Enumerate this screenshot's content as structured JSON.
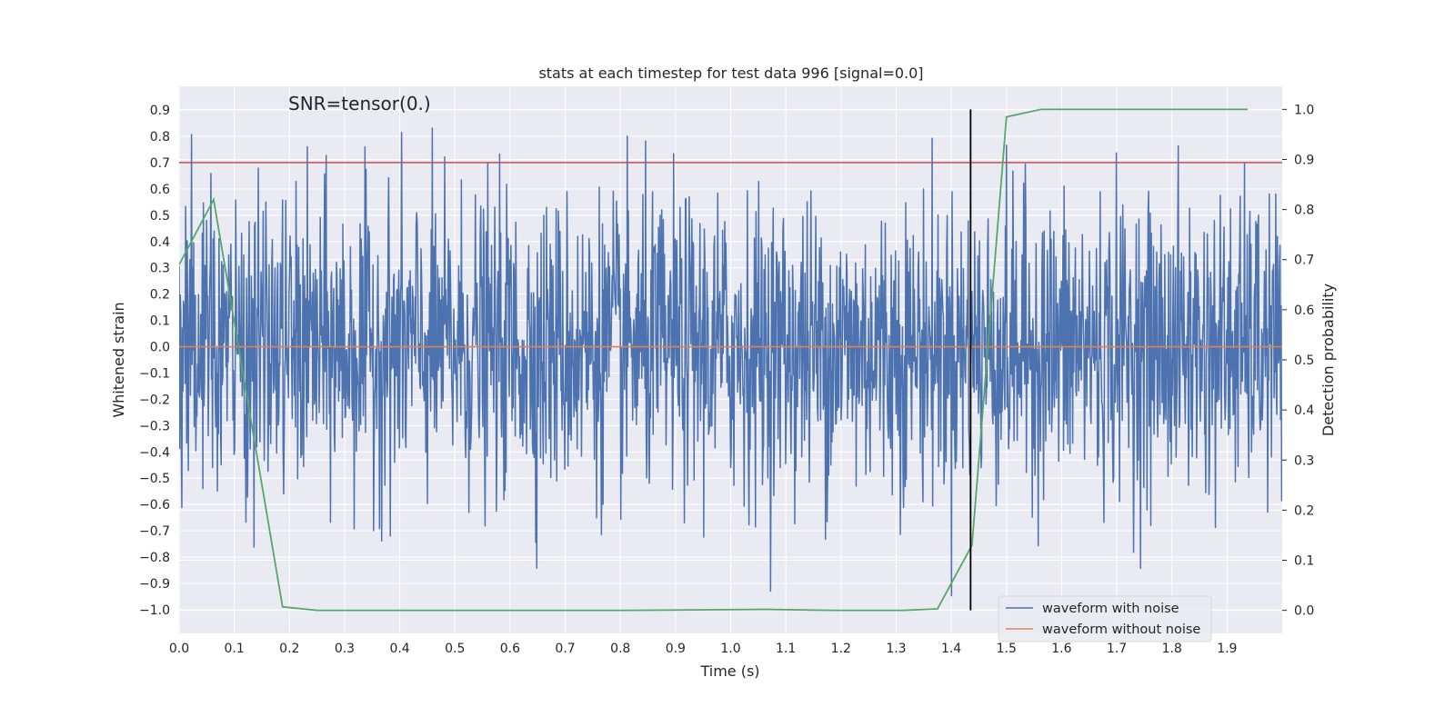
{
  "chart_data": {
    "type": "line",
    "title": "stats at each timestep for test data 996 [signal=0.0]",
    "xlabel": "Time (s)",
    "ylabel": "Whitened strain",
    "y2label": "Detection probability",
    "annotation": "SNR=tensor(0.)",
    "xlim": [
      0.0,
      2.0
    ],
    "ylim": [
      -1.09,
      0.99
    ],
    "y2lim": [
      -0.046,
      1.046
    ],
    "xticks": [
      "0.0",
      "0.1",
      "0.2",
      "0.3",
      "0.4",
      "0.5",
      "0.6",
      "0.7",
      "0.8",
      "0.9",
      "1.0",
      "1.1",
      "1.2",
      "1.3",
      "1.4",
      "1.5",
      "1.6",
      "1.7",
      "1.8",
      "1.9"
    ],
    "yticks": [
      "0.9",
      "0.8",
      "0.7",
      "0.6",
      "0.5",
      "0.4",
      "0.3",
      "0.2",
      "0.1",
      "0.0",
      "−0.1",
      "−0.2",
      "−0.3",
      "−0.4",
      "−0.5",
      "−0.6",
      "−0.7",
      "−0.8",
      "−0.9",
      "−1.0"
    ],
    "y2ticks": [
      "1.0",
      "0.9",
      "0.8",
      "0.7",
      "0.6",
      "0.5",
      "0.4",
      "0.3",
      "0.2",
      "0.1",
      "0.0"
    ],
    "grid": true,
    "legend_position": "lower-right",
    "noise_seed": 996,
    "series": [
      {
        "name": "waveform with noise",
        "color": "#4c72b0",
        "axis": "left",
        "n_samples": 2048,
        "std": 0.28,
        "min": -1.0,
        "max": 0.89
      },
      {
        "name": "waveform without noise",
        "color": "#dd8452",
        "axis": "left",
        "x": [
          0.0,
          2.0
        ],
        "y": [
          0.0,
          0.0
        ]
      },
      {
        "color": "#55a868",
        "axis": "right",
        "x": [
          0.0,
          0.0625,
          0.1875,
          0.25,
          0.3125,
          0.4375,
          0.5625,
          0.6875,
          0.8125,
          0.9375,
          1.0625,
          1.1875,
          1.3125,
          1.375,
          1.4375,
          1.5,
          1.5625,
          1.6875,
          1.8125,
          1.9375
        ],
        "y": [
          0.69,
          0.82,
          0.007,
          0.0,
          0.0,
          0.0,
          0.0,
          0.0,
          0.0,
          0.001,
          0.002,
          0.0,
          0.0,
          0.003,
          0.13,
          0.985,
          1.0,
          1.0,
          1.0,
          1.0
        ]
      }
    ],
    "hlines": [
      {
        "y": 0.7,
        "color": "#c44e52"
      }
    ],
    "vlines": [
      {
        "x": 1.435,
        "color": "#000000"
      }
    ]
  }
}
